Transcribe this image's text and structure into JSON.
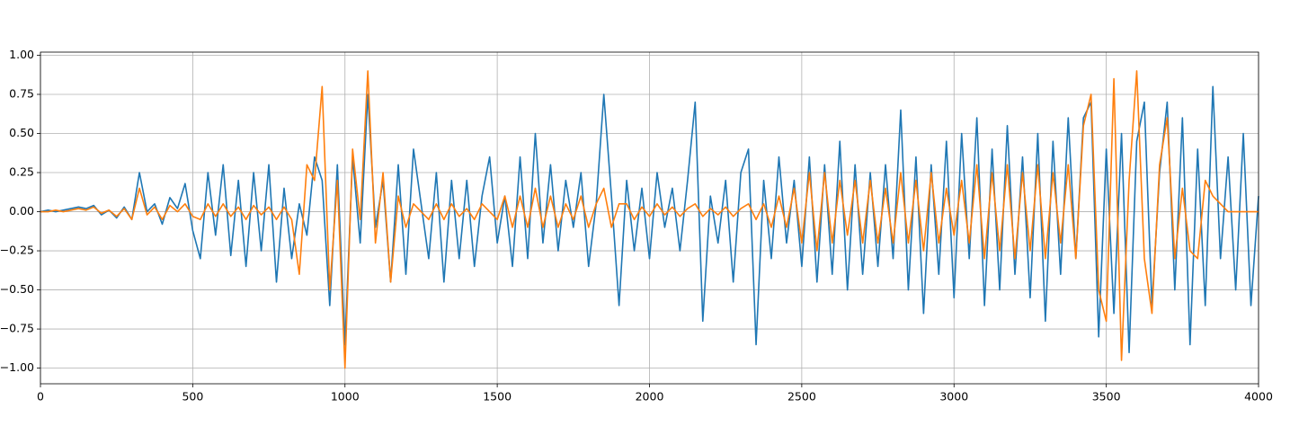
{
  "chart_data": {
    "type": "line",
    "x": [
      0,
      25,
      50,
      75,
      100,
      125,
      150,
      175,
      200,
      225,
      250,
      275,
      300,
      325,
      350,
      375,
      400,
      425,
      450,
      475,
      500,
      525,
      550,
      575,
      600,
      625,
      650,
      675,
      700,
      725,
      750,
      775,
      800,
      825,
      850,
      875,
      900,
      925,
      950,
      975,
      1000,
      1025,
      1050,
      1075,
      1100,
      1125,
      1150,
      1175,
      1200,
      1225,
      1250,
      1275,
      1300,
      1325,
      1350,
      1375,
      1400,
      1425,
      1450,
      1475,
      1500,
      1525,
      1550,
      1575,
      1600,
      1625,
      1650,
      1675,
      1700,
      1725,
      1750,
      1775,
      1800,
      1825,
      1850,
      1875,
      1900,
      1925,
      1950,
      1975,
      2000,
      2025,
      2050,
      2075,
      2100,
      2125,
      2150,
      2175,
      2200,
      2225,
      2250,
      2275,
      2300,
      2325,
      2350,
      2375,
      2400,
      2425,
      2450,
      2475,
      2500,
      2525,
      2550,
      2575,
      2600,
      2625,
      2650,
      2675,
      2700,
      2725,
      2750,
      2775,
      2800,
      2825,
      2850,
      2875,
      2900,
      2925,
      2950,
      2975,
      3000,
      3025,
      3050,
      3075,
      3100,
      3125,
      3150,
      3175,
      3200,
      3225,
      3250,
      3275,
      3300,
      3325,
      3350,
      3375,
      3400,
      3425,
      3450,
      3475,
      3500,
      3525,
      3550,
      3575,
      3600,
      3625,
      3650,
      3675,
      3700,
      3725,
      3750,
      3775,
      3800,
      3825,
      3850,
      3875,
      3900,
      3925,
      3950,
      3975,
      4000
    ],
    "series": [
      {
        "color": "#1f77b4",
        "values": [
          0,
          0.01,
          0,
          0.01,
          0.02,
          0.03,
          0.02,
          0.04,
          -0.02,
          0.01,
          -0.04,
          0.03,
          -0.05,
          0.25,
          0,
          0.05,
          -0.08,
          0.09,
          0.02,
          0.18,
          -0.12,
          -0.3,
          0.25,
          -0.15,
          0.3,
          -0.28,
          0.2,
          -0.35,
          0.25,
          -0.25,
          0.3,
          -0.45,
          0.15,
          -0.3,
          0.05,
          -0.15,
          0.35,
          0.2,
          -0.6,
          0.3,
          -0.85,
          0.35,
          -0.2,
          0.75,
          -0.1,
          0.2,
          -0.45,
          0.3,
          -0.4,
          0.4,
          0.05,
          -0.3,
          0.25,
          -0.45,
          0.2,
          -0.3,
          0.2,
          -0.35,
          0.1,
          0.35,
          -0.2,
          0.1,
          -0.35,
          0.35,
          -0.3,
          0.5,
          -0.2,
          0.3,
          -0.25,
          0.2,
          -0.1,
          0.25,
          -0.35,
          0.05,
          0.75,
          0.1,
          -0.6,
          0.2,
          -0.25,
          0.15,
          -0.3,
          0.25,
          -0.1,
          0.15,
          -0.25,
          0.2,
          0.7,
          -0.7,
          0.1,
          -0.2,
          0.2,
          -0.45,
          0.25,
          0.4,
          -0.85,
          0.2,
          -0.3,
          0.35,
          -0.2,
          0.2,
          -0.35,
          0.35,
          -0.45,
          0.3,
          -0.4,
          0.45,
          -0.5,
          0.3,
          -0.4,
          0.25,
          -0.35,
          0.3,
          -0.3,
          0.65,
          -0.5,
          0.35,
          -0.65,
          0.3,
          -0.4,
          0.45,
          -0.55,
          0.5,
          -0.3,
          0.6,
          -0.6,
          0.4,
          -0.5,
          0.55,
          -0.4,
          0.35,
          -0.55,
          0.5,
          -0.7,
          0.45,
          -0.4,
          0.6,
          -0.3,
          0.6,
          0.7,
          -0.8,
          0.4,
          -0.65,
          0.5,
          -0.9,
          0.45,
          0.7,
          -0.6,
          0.25,
          0.7,
          -0.5,
          0.6,
          -0.85,
          0.4,
          -0.6,
          0.8,
          -0.3,
          0.35,
          -0.5,
          0.5,
          -0.6,
          0.1
        ]
      },
      {
        "color": "#ff7f0e",
        "values": [
          0,
          0,
          0.01,
          0,
          0.01,
          0.02,
          0.01,
          0.03,
          -0.01,
          0.01,
          -0.03,
          0.02,
          -0.05,
          0.15,
          -0.02,
          0.03,
          -0.05,
          0.04,
          0,
          0.05,
          -0.03,
          -0.05,
          0.05,
          -0.03,
          0.05,
          -0.03,
          0.03,
          -0.05,
          0.04,
          -0.02,
          0.03,
          -0.05,
          0.03,
          -0.05,
          -0.4,
          0.3,
          0.2,
          0.8,
          -0.5,
          0.2,
          -1.0,
          0.4,
          -0.05,
          0.9,
          -0.2,
          0.25,
          -0.45,
          0.1,
          -0.1,
          0.05,
          0,
          -0.05,
          0.05,
          -0.05,
          0.05,
          -0.03,
          0.02,
          -0.05,
          0.05,
          0,
          -0.05,
          0.1,
          -0.1,
          0.1,
          -0.1,
          0.15,
          -0.1,
          0.1,
          -0.1,
          0.05,
          -0.05,
          0.1,
          -0.1,
          0.05,
          0.15,
          -0.1,
          0.05,
          0.05,
          -0.05,
          0.03,
          -0.03,
          0.05,
          -0.02,
          0.03,
          -0.03,
          0.02,
          0.05,
          -0.03,
          0.02,
          -0.02,
          0.03,
          -0.03,
          0.02,
          0.05,
          -0.05,
          0.05,
          -0.1,
          0.1,
          -0.1,
          0.15,
          -0.2,
          0.25,
          -0.25,
          0.25,
          -0.2,
          0.2,
          -0.15,
          0.2,
          -0.2,
          0.2,
          -0.2,
          0.15,
          -0.2,
          0.25,
          -0.2,
          0.2,
          -0.25,
          0.25,
          -0.2,
          0.15,
          -0.15,
          0.2,
          -0.2,
          0.3,
          -0.3,
          0.25,
          -0.25,
          0.3,
          -0.3,
          0.25,
          -0.25,
          0.3,
          -0.3,
          0.25,
          -0.2,
          0.3,
          -0.3,
          0.55,
          0.75,
          -0.5,
          -0.7,
          0.85,
          -0.95,
          0.2,
          0.9,
          -0.3,
          -0.65,
          0.3,
          0.6,
          -0.3,
          0.15,
          -0.25,
          -0.3,
          0.2,
          0.1,
          0.05,
          0,
          0,
          0,
          0,
          0
        ]
      }
    ],
    "xlim": [
      0,
      4000
    ],
    "xticks": [
      0,
      500,
      1000,
      1500,
      2000,
      2500,
      3000,
      3500,
      4000
    ],
    "ylim": [
      -1.1,
      1.02
    ],
    "yticks": [
      {
        "value": -1,
        "label": "−1.00"
      },
      {
        "value": -0.75,
        "label": "−0.75"
      },
      {
        "value": -0.5,
        "label": "−0.50"
      },
      {
        "value": -0.25,
        "label": "−0.25"
      },
      {
        "value": 0,
        "label": "0.00"
      },
      0.25,
      {
        "value": 0.5,
        "label": "0.50"
      },
      0.75,
      {
        "value": 1,
        "label": "1.00"
      }
    ],
    "grid": true
  }
}
